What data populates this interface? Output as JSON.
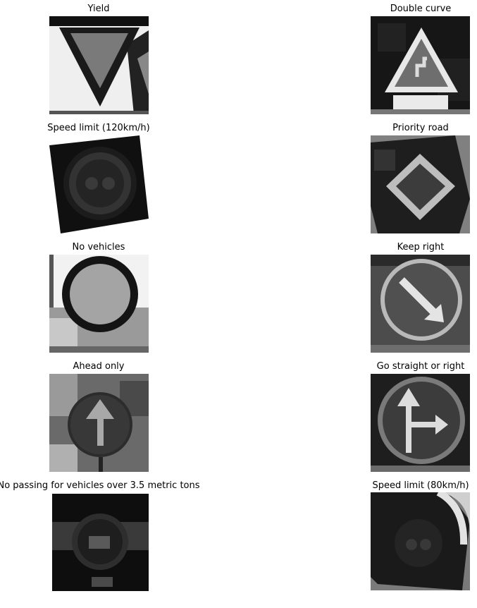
{
  "figure": {
    "panels": [
      {
        "title": "Yield"
      },
      {
        "title": "Double curve"
      },
      {
        "title": "Speed limit (120km/h)"
      },
      {
        "title": "Priority road"
      },
      {
        "title": "No vehicles"
      },
      {
        "title": "Keep right"
      },
      {
        "title": "Ahead only"
      },
      {
        "title": "Go straight or right"
      },
      {
        "title": "No passing for vehicles over 3.5 metric tons"
      },
      {
        "title": "Speed limit (80km/h)"
      }
    ]
  }
}
